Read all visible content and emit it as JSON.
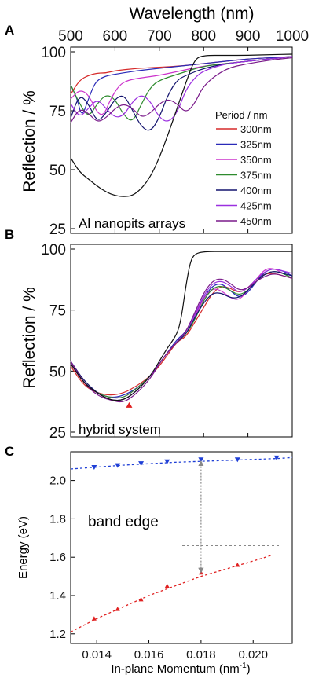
{
  "colors": {
    "300nm": "#d62a2a",
    "325nm": "#2a2ab8",
    "350nm": "#cc33cc",
    "375nm": "#2e8b2e",
    "400nm": "#14146e",
    "425nm": "#9b30e0",
    "450nm": "#7a1a8a",
    "flat": "#111111",
    "upper_branch": "#1f3fd6",
    "lower_branch": "#e02020",
    "guide": "#888888"
  },
  "chart_data": [
    {
      "panel": "A",
      "type": "line",
      "xlabel": "Wavelength (nm)",
      "ylabel": "Reflection / %",
      "x_ticks": [
        500,
        600,
        700,
        800,
        900,
        1000
      ],
      "y_ticks": [
        25,
        50,
        75,
        100
      ],
      "xlim": [
        500,
        1000
      ],
      "ylim": [
        25,
        100
      ],
      "legend_title": "Period /  nm",
      "legend_position": "right",
      "annotation": "Al nanopits arrays",
      "series": [
        {
          "name": "300nm",
          "color_key": "300nm",
          "x": [
            500,
            520,
            540,
            560,
            580,
            600,
            650,
            700,
            750,
            800,
            850,
            900,
            950,
            1000
          ],
          "y": [
            82,
            88,
            90,
            91,
            91,
            92,
            93,
            93.5,
            94,
            95,
            96,
            97,
            97.5,
            98
          ]
        },
        {
          "name": "325nm",
          "color_key": "325nm",
          "x": [
            500,
            515,
            525,
            540,
            555,
            570,
            585,
            600,
            650,
            700,
            750,
            800,
            850,
            900,
            950,
            1000
          ],
          "y": [
            86,
            80,
            72,
            80,
            87,
            89,
            90,
            90.5,
            92,
            93,
            94,
            95,
            96,
            97,
            97.5,
            98
          ]
        },
        {
          "name": "350nm",
          "color_key": "350nm",
          "x": [
            500,
            520,
            540,
            560,
            575,
            590,
            610,
            630,
            660,
            700,
            750,
            800,
            850,
            900,
            950,
            1000
          ],
          "y": [
            80,
            84,
            82,
            74,
            73,
            80,
            86,
            88,
            89,
            90,
            92,
            94,
            95,
            96,
            97,
            98
          ]
        },
        {
          "name": "375nm",
          "color_key": "375nm",
          "x": [
            500,
            520,
            540,
            560,
            580,
            600,
            620,
            640,
            660,
            680,
            700,
            750,
            800,
            850,
            900,
            950,
            1000
          ],
          "y": [
            86,
            78,
            72,
            78,
            82,
            80,
            73,
            70,
            78,
            85,
            88,
            91,
            94,
            95,
            96,
            97,
            98
          ]
        },
        {
          "name": "400nm",
          "color_key": "400nm",
          "x": [
            500,
            520,
            540,
            560,
            580,
            600,
            620,
            640,
            660,
            680,
            700,
            720,
            740,
            760,
            800,
            850,
            900,
            950,
            1000
          ],
          "y": [
            72,
            82,
            78,
            70,
            74,
            80,
            82,
            75,
            68,
            66,
            72,
            82,
            88,
            90,
            93,
            95,
            96,
            97,
            98
          ]
        },
        {
          "name": "425nm",
          "color_key": "425nm",
          "x": [
            500,
            520,
            540,
            560,
            580,
            600,
            620,
            640,
            660,
            680,
            700,
            720,
            740,
            760,
            780,
            800,
            850,
            900,
            950,
            1000
          ],
          "y": [
            78,
            72,
            76,
            80,
            76,
            72,
            73,
            79,
            82,
            79,
            72,
            70,
            74,
            84,
            89,
            92,
            95,
            96,
            97,
            98
          ]
        },
        {
          "name": "450nm",
          "color_key": "450nm",
          "x": [
            500,
            520,
            540,
            560,
            580,
            600,
            620,
            640,
            660,
            680,
            700,
            720,
            740,
            760,
            780,
            800,
            850,
            900,
            950,
            1000
          ],
          "y": [
            70,
            76,
            74,
            70,
            72,
            76,
            78,
            76,
            72,
            74,
            78,
            80,
            78,
            74,
            78,
            86,
            93,
            95,
            96.5,
            97.5
          ]
        },
        {
          "name": "",
          "color_key": "flat",
          "x": [
            500,
            520,
            540,
            560,
            580,
            600,
            620,
            640,
            660,
            680,
            700,
            720,
            740,
            760,
            780,
            800,
            850,
            900,
            950,
            1000
          ],
          "y": [
            55,
            49,
            46,
            43,
            40.5,
            39,
            38.5,
            39,
            42,
            47,
            55,
            65,
            76,
            87,
            97,
            98.5,
            98.5,
            98.5,
            98.8,
            99
          ]
        }
      ]
    },
    {
      "panel": "B",
      "type": "line",
      "xlabel": "",
      "ylabel": "Reflection / %",
      "y_ticks": [
        25,
        50,
        75,
        100
      ],
      "xlim": [
        500,
        1000
      ],
      "ylim": [
        25,
        100
      ],
      "annotation": "hybrid system",
      "series": [
        {
          "name": "",
          "color_key": "300nm",
          "x": [
            500,
            530,
            560,
            590,
            620,
            650,
            680,
            700,
            720,
            740,
            760,
            780,
            800,
            820,
            840,
            860,
            880,
            900,
            920,
            940,
            960,
            980,
            1000
          ],
          "y": [
            52,
            44,
            41,
            40,
            41,
            44,
            48,
            52,
            57,
            62,
            64,
            70,
            76,
            82,
            85,
            84,
            82,
            84,
            88,
            90,
            90,
            89,
            88
          ]
        },
        {
          "name": "",
          "color_key": "325nm",
          "x": [
            500,
            530,
            560,
            590,
            620,
            650,
            680,
            700,
            720,
            740,
            760,
            780,
            800,
            820,
            840,
            860,
            880,
            900,
            920,
            940,
            960,
            980,
            1000
          ],
          "y": [
            53,
            45,
            41,
            39,
            40,
            43,
            48,
            53,
            58,
            63,
            66,
            73,
            80,
            85,
            86,
            83,
            80,
            82,
            87,
            91,
            92,
            91,
            89
          ]
        },
        {
          "name": "",
          "color_key": "350nm",
          "x": [
            500,
            530,
            560,
            590,
            620,
            650,
            680,
            700,
            720,
            740,
            760,
            780,
            800,
            820,
            840,
            860,
            880,
            900,
            920,
            940,
            960,
            980,
            1000
          ],
          "y": [
            53,
            45,
            41,
            39,
            39,
            43,
            48,
            53,
            58,
            62,
            65,
            72,
            80,
            84,
            83,
            80,
            79,
            83,
            88,
            92,
            92,
            90,
            88
          ]
        },
        {
          "name": "",
          "color_key": "375nm",
          "x": [
            500,
            530,
            560,
            590,
            620,
            650,
            680,
            700,
            720,
            740,
            760,
            780,
            800,
            820,
            840,
            860,
            880,
            900,
            920,
            940,
            960,
            980,
            1000
          ],
          "y": [
            54,
            45,
            41,
            39,
            39,
            43,
            48,
            53,
            58,
            62,
            65,
            71,
            79,
            84,
            85,
            83,
            81,
            83,
            87,
            90,
            91,
            90,
            88
          ]
        },
        {
          "name": "",
          "color_key": "400nm",
          "x": [
            500,
            530,
            560,
            590,
            620,
            650,
            680,
            700,
            720,
            740,
            760,
            780,
            800,
            820,
            840,
            860,
            880,
            900,
            920,
            940,
            960,
            980,
            1000
          ],
          "y": [
            54,
            46,
            41,
            38,
            38,
            42,
            48,
            53,
            58,
            62,
            65,
            72,
            78,
            82,
            82,
            80,
            80,
            83,
            87,
            90,
            91,
            90,
            89
          ]
        },
        {
          "name": "",
          "color_key": "425nm",
          "x": [
            500,
            530,
            560,
            590,
            620,
            650,
            680,
            700,
            720,
            740,
            760,
            780,
            800,
            820,
            840,
            860,
            880,
            900,
            920,
            940,
            960,
            980,
            1000
          ],
          "y": [
            54,
            45,
            41,
            38,
            38,
            42,
            48,
            53,
            58,
            62,
            66,
            73,
            81,
            86,
            87,
            85,
            82,
            84,
            88,
            91,
            92,
            91,
            90
          ]
        },
        {
          "name": "",
          "color_key": "450nm",
          "x": [
            500,
            530,
            560,
            590,
            620,
            650,
            680,
            700,
            720,
            740,
            760,
            780,
            800,
            820,
            840,
            860,
            880,
            900,
            920,
            940,
            960,
            980,
            1000
          ],
          "y": [
            54,
            45,
            40,
            38,
            37,
            41,
            47,
            53,
            58,
            62,
            66,
            74,
            82,
            87,
            88,
            86,
            83,
            84,
            87,
            89,
            90,
            89,
            88
          ]
        },
        {
          "name": "",
          "color_key": "flat",
          "x": [
            500,
            530,
            560,
            590,
            620,
            650,
            680,
            700,
            720,
            740,
            750,
            760,
            770,
            780,
            800,
            850,
            900,
            950,
            1000
          ],
          "y": [
            53,
            45,
            41,
            38,
            38,
            42,
            48,
            54,
            60,
            65,
            72,
            85,
            95,
            98,
            99,
            99,
            99,
            99,
            99
          ]
        }
      ],
      "marker": {
        "x": 632,
        "y": 36
      }
    },
    {
      "panel": "C",
      "type": "scatter",
      "xlabel": "In-plane Momentum (nm",
      "xlabel_sup": "-1",
      "xlabel_tail": ")",
      "ylabel": "Energy (eV)",
      "x_ticks": [
        "0.014",
        "0.016",
        "0.018",
        "0.020"
      ],
      "x_tick_values": [
        0.014,
        0.016,
        0.018,
        0.02
      ],
      "y_ticks": [
        "1.2",
        "1.4",
        "1.6",
        "1.8",
        "2.0"
      ],
      "y_tick_values": [
        1.2,
        1.4,
        1.6,
        1.8,
        2.0
      ],
      "xlim": [
        0.013,
        0.0215
      ],
      "ylim": [
        1.15,
        2.15
      ],
      "annotation": "band edge",
      "band_edge_energy": 1.66,
      "upper_branch": {
        "x": [
          0.0139,
          0.0148,
          0.0157,
          0.0167,
          0.018,
          0.0194,
          0.0209
        ],
        "y": [
          2.07,
          2.08,
          2.09,
          2.1,
          2.11,
          2.11,
          2.12
        ]
      },
      "upper_fit": {
        "x": [
          0.013,
          0.015,
          0.017,
          0.019,
          0.021,
          0.0215
        ],
        "y": [
          2.06,
          2.08,
          2.095,
          2.105,
          2.115,
          2.12
        ]
      },
      "lower_branch": {
        "x": [
          0.0139,
          0.0148,
          0.0157,
          0.0167,
          0.018,
          0.0194
        ],
        "y": [
          1.28,
          1.33,
          1.38,
          1.45,
          1.52,
          1.56
        ]
      },
      "lower_fit": {
        "x": [
          0.013,
          0.014,
          0.015,
          0.016,
          0.017,
          0.018,
          0.019,
          0.02,
          0.0207
        ],
        "y": [
          1.21,
          1.28,
          1.34,
          1.4,
          1.45,
          1.5,
          1.54,
          1.58,
          1.61
        ]
      },
      "rabi_arrow": {
        "x": 0.018,
        "y_top": 2.09,
        "y_bottom": 1.53
      }
    }
  ],
  "top_axis": {
    "title": "Wavelength (nm)",
    "ticks": [
      "500",
      "600",
      "700",
      "800",
      "900",
      "1000"
    ]
  }
}
